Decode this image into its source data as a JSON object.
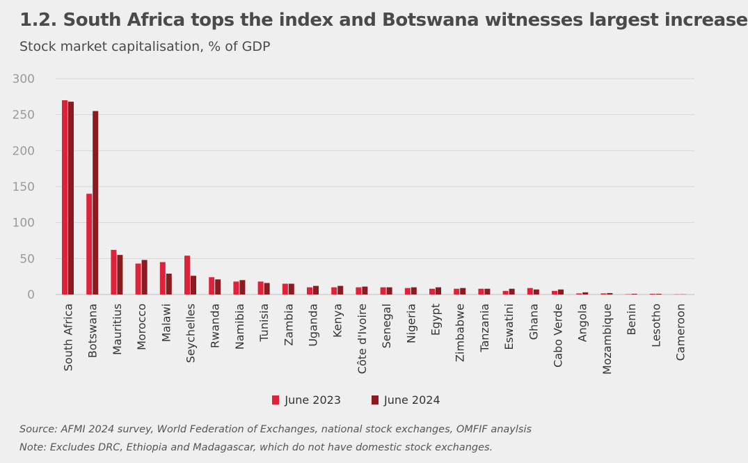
{
  "header": {
    "title": "1.2. South Africa tops the index and Botswana witnesses largest increase",
    "subtitle": "Stock market capitalisation, % of GDP"
  },
  "footer": {
    "source": "Source: AFMI 2024 survey, World Federation of Exchanges, national stock exchanges, OMFIF anaylsis",
    "note": "Note: Excludes DRC, Ethiopia and Madagascar, which do not have domestic stock exchanges."
  },
  "colors": {
    "june_2023": "#e0213a",
    "june_2024": "#8b1b20",
    "grid": "#d6d6d6",
    "axis_text": "#9a9a9a",
    "category_text": "#333333"
  },
  "chart_data": {
    "type": "bar",
    "title": "1.2. South Africa tops the index and Botswana witnesses largest increase",
    "subtitle": "Stock market capitalisation, % of GDP",
    "ylim": [
      0,
      300
    ],
    "yticks": [
      0,
      50,
      100,
      150,
      200,
      250,
      300
    ],
    "grid": true,
    "legend_position": "bottom-center",
    "categories": [
      "South Africa",
      "Botswana",
      "Mauritius",
      "Morocco",
      "Malawi",
      "Seychelles",
      "Rwanda",
      "Namibia",
      "Tunisia",
      "Zambia",
      "Uganda",
      "Kenya",
      "Côte d'Ivoire",
      "Senegal",
      "Nigeria",
      "Egypt",
      "Zimbabwe",
      "Tanzania",
      "Eswatini",
      "Ghana",
      "Cabo Verde",
      "Angola",
      "Mozambique",
      "Benin",
      "Lesotho",
      "Cameroon"
    ],
    "series": [
      {
        "name": "June 2023",
        "values": [
          270,
          140,
          62,
          43,
          45,
          54,
          24,
          18,
          18,
          15,
          10,
          10,
          10,
          10,
          9,
          8,
          8,
          8,
          5,
          9,
          5,
          1.5,
          1.5,
          0.5,
          1,
          0.3
        ]
      },
      {
        "name": "June 2024",
        "values": [
          268,
          255,
          55,
          48,
          29,
          26,
          21,
          20,
          16,
          15,
          12,
          12,
          11,
          10,
          10,
          10,
          9,
          8,
          8,
          7,
          7,
          3,
          2,
          1,
          1,
          0.3
        ]
      }
    ]
  }
}
